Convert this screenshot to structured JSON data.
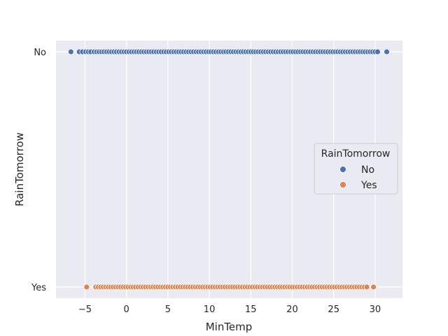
{
  "chart_data": {
    "type": "scatter",
    "xlabel": "MinTemp",
    "ylabel": "RainTomorrow",
    "xlim": [
      -8.5,
      33.3
    ],
    "x_ticks": [
      -5,
      0,
      5,
      10,
      15,
      20,
      25,
      30
    ],
    "y_categories": [
      "No",
      "Yes"
    ],
    "grid": true,
    "legend": {
      "title": "RainTomorrow",
      "placement": "center-right",
      "entries": [
        {
          "name": "No",
          "color": "#4c72b0"
        },
        {
          "name": "Yes",
          "color": "#dd8452"
        }
      ]
    },
    "series": [
      {
        "name": "No",
        "color": "#4c72b0",
        "x": [
          -6.7,
          -5.7,
          -5.3,
          -4.9,
          -4.6,
          -4.3,
          -3.9,
          -3.6,
          -3.3,
          -3.0,
          -2.7,
          -2.4,
          -2.1,
          -1.8,
          -1.5,
          -1.2,
          -0.9,
          -0.6,
          -0.3,
          0.0,
          0.3,
          0.6,
          0.9,
          1.2,
          1.5,
          1.8,
          2.1,
          2.4,
          2.7,
          3.0,
          3.3,
          3.6,
          3.9,
          4.2,
          4.5,
          4.8,
          5.1,
          5.4,
          5.7,
          6.0,
          6.3,
          6.6,
          6.9,
          7.2,
          7.5,
          7.8,
          8.1,
          8.4,
          8.7,
          9.0,
          9.3,
          9.6,
          9.9,
          10.2,
          10.5,
          10.8,
          11.1,
          11.4,
          11.7,
          12.0,
          12.3,
          12.6,
          12.9,
          13.2,
          13.5,
          13.8,
          14.1,
          14.4,
          14.7,
          15.0,
          15.3,
          15.6,
          15.9,
          16.2,
          16.5,
          16.8,
          17.1,
          17.4,
          17.7,
          18.0,
          18.3,
          18.6,
          18.9,
          19.2,
          19.5,
          19.8,
          20.1,
          20.4,
          20.7,
          21.0,
          21.3,
          21.6,
          21.9,
          22.2,
          22.5,
          22.8,
          23.1,
          23.4,
          23.7,
          24.0,
          24.3,
          24.6,
          24.9,
          25.2,
          25.5,
          25.8,
          26.1,
          26.4,
          26.7,
          27.0,
          27.3,
          27.6,
          27.9,
          28.2,
          28.5,
          28.8,
          29.1,
          29.4,
          29.7,
          30.0,
          30.3,
          31.4
        ],
        "y": "No"
      },
      {
        "name": "Yes",
        "color": "#dd8452",
        "x": [
          -4.8,
          -3.7,
          -3.4,
          -3.1,
          -2.8,
          -2.5,
          -2.2,
          -1.9,
          -1.6,
          -1.3,
          -1.0,
          -0.7,
          -0.4,
          -0.1,
          0.2,
          0.5,
          0.8,
          1.1,
          1.4,
          1.7,
          2.0,
          2.3,
          2.6,
          2.9,
          3.2,
          3.5,
          3.8,
          4.1,
          4.4,
          4.7,
          5.0,
          5.3,
          5.6,
          5.9,
          6.2,
          6.5,
          6.8,
          7.1,
          7.4,
          7.7,
          8.0,
          8.3,
          8.6,
          8.9,
          9.2,
          9.5,
          9.8,
          10.1,
          10.4,
          10.7,
          11.0,
          11.3,
          11.6,
          11.9,
          12.2,
          12.5,
          12.8,
          13.1,
          13.4,
          13.7,
          14.0,
          14.3,
          14.6,
          14.9,
          15.2,
          15.5,
          15.8,
          16.1,
          16.4,
          16.7,
          17.0,
          17.3,
          17.6,
          17.9,
          18.2,
          18.5,
          18.8,
          19.1,
          19.4,
          19.7,
          20.0,
          20.3,
          20.6,
          20.9,
          21.2,
          21.5,
          21.8,
          22.1,
          22.4,
          22.7,
          23.0,
          23.3,
          23.6,
          23.9,
          24.2,
          24.5,
          24.8,
          25.1,
          25.4,
          25.7,
          26.0,
          26.3,
          26.6,
          26.9,
          27.2,
          27.5,
          27.8,
          28.1,
          28.4,
          28.7,
          29.0,
          29.8
        ],
        "y": "Yes"
      }
    ]
  }
}
